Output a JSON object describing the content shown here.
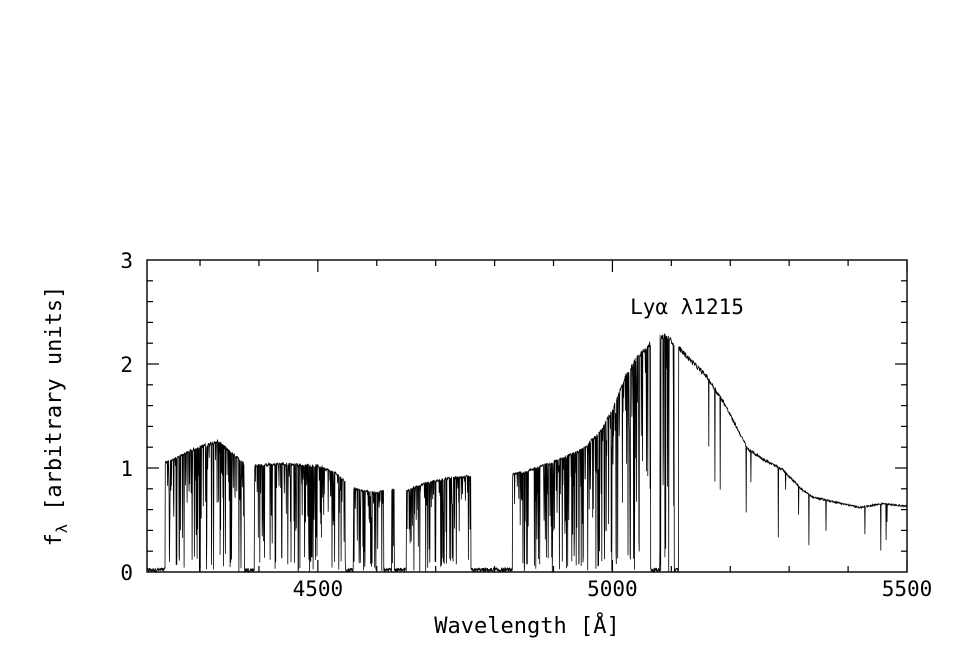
{
  "chart_data": {
    "type": "line",
    "title": "",
    "xlabel": "Wavelength [Å]",
    "ylabel_main": "f",
    "ylabel_sub": "λ",
    "ylabel_rest": " [arbitrary units]",
    "xlim": [
      4210,
      5500
    ],
    "ylim": [
      0,
      3
    ],
    "x_ticks_major": [
      4500,
      5000,
      5500
    ],
    "x_tick_labels": [
      "4500",
      "5000",
      "5500"
    ],
    "y_ticks_major": [
      0,
      1,
      2,
      3
    ],
    "y_tick_labels": [
      "0",
      "1",
      "2",
      "3"
    ],
    "grid": false,
    "annotations": [
      {
        "text": "Lyα λ1215",
        "x": 5030,
        "y": 2.48
      }
    ],
    "series": [
      {
        "continuum_points": [
          [
            4210,
            1.0
          ],
          [
            4250,
            1.07
          ],
          [
            4290,
            1.18
          ],
          [
            4330,
            1.26
          ],
          [
            4350,
            1.16
          ],
          [
            4380,
            1.02
          ],
          [
            4440,
            1.04
          ],
          [
            4500,
            1.02
          ],
          [
            4530,
            0.95
          ],
          [
            4560,
            0.8
          ],
          [
            4600,
            0.76
          ],
          [
            4620,
            0.8
          ],
          [
            4650,
            0.78
          ],
          [
            4680,
            0.85
          ],
          [
            4720,
            0.9
          ],
          [
            4760,
            0.92
          ],
          [
            4800,
            0.92
          ],
          [
            4850,
            0.96
          ],
          [
            4900,
            1.06
          ],
          [
            4950,
            1.18
          ],
          [
            4980,
            1.35
          ],
          [
            5000,
            1.55
          ],
          [
            5020,
            1.85
          ],
          [
            5040,
            2.05
          ],
          [
            5060,
            2.18
          ],
          [
            5080,
            2.25
          ],
          [
            5090,
            2.27
          ],
          [
            5105,
            2.2
          ],
          [
            5130,
            2.05
          ],
          [
            5160,
            1.88
          ],
          [
            5190,
            1.62
          ],
          [
            5210,
            1.4
          ],
          [
            5230,
            1.18
          ],
          [
            5260,
            1.07
          ],
          [
            5290,
            0.98
          ],
          [
            5320,
            0.8
          ],
          [
            5340,
            0.72
          ],
          [
            5380,
            0.67
          ],
          [
            5420,
            0.62
          ],
          [
            5460,
            0.66
          ],
          [
            5500,
            0.63
          ]
        ],
        "absorption_troughs": [
          {
            "from": 4210,
            "to": 4240,
            "min": 0.0
          },
          {
            "from": 4376,
            "to": 4392,
            "min": 0.0
          },
          {
            "from": 4547,
            "to": 4560,
            "min": 0.0
          },
          {
            "from": 4612,
            "to": 4625,
            "min": 0.0
          },
          {
            "from": 4630,
            "to": 4650,
            "min": 0.0
          },
          {
            "from": 4760,
            "to": 4830,
            "min": 0.0
          },
          {
            "from": 5065,
            "to": 5080,
            "min": 0.0
          },
          {
            "from": 5105,
            "to": 5112,
            "min": 0.0
          }
        ]
      }
    ]
  }
}
